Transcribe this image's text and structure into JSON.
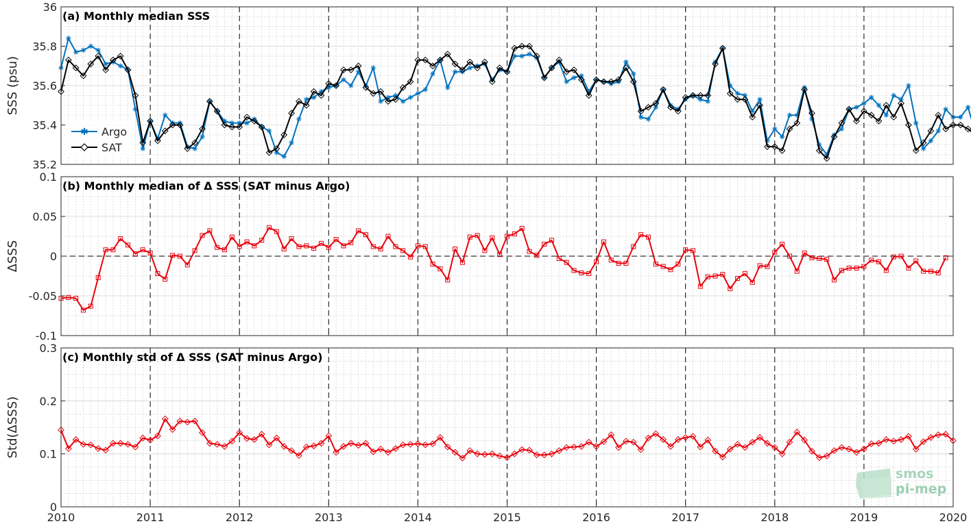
{
  "chart_data": [
    {
      "type": "line",
      "title": "(a) Monthly median SSS",
      "ylabel": "SSS (psu)",
      "xlim": [
        2010,
        2020
      ],
      "ylim": [
        35.2,
        36.0
      ],
      "xticks": [
        "2010",
        "2011",
        "2012",
        "2013",
        "2014",
        "2015",
        "2016",
        "2017",
        "2018",
        "2019",
        "2020"
      ],
      "yticks": [
        "35.2",
        "35.4",
        "35.6",
        "35.8",
        "36"
      ],
      "legend": {
        "location": "bottom-left"
      },
      "x_start": 2010.0,
      "x_step": 0.08333,
      "series": [
        {
          "name": "Argo",
          "color": "#0072BD",
          "marker": "star",
          "values": [
            35.69,
            35.84,
            35.77,
            35.78,
            35.8,
            35.78,
            35.71,
            35.72,
            35.7,
            35.68,
            35.48,
            35.28,
            35.42,
            35.33,
            35.45,
            35.41,
            35.41,
            35.29,
            35.28,
            35.34,
            35.52,
            35.47,
            35.42,
            35.41,
            35.41,
            35.41,
            35.43,
            35.39,
            35.37,
            35.26,
            35.24,
            35.31,
            35.43,
            35.53,
            35.54,
            35.57,
            35.59,
            35.6,
            35.63,
            35.6,
            35.67,
            35.6,
            35.69,
            35.52,
            35.54,
            35.55,
            35.52,
            35.54,
            35.56,
            35.58,
            35.66,
            35.73,
            35.59,
            35.67,
            35.67,
            35.69,
            35.7,
            35.71,
            35.63,
            35.68,
            35.67,
            35.75,
            35.75,
            35.76,
            35.74,
            35.64,
            35.69,
            35.72,
            35.62,
            35.64,
            35.65,
            35.57,
            35.63,
            35.62,
            35.61,
            35.62,
            35.72,
            35.66,
            35.44,
            35.43,
            35.49,
            35.58,
            35.5,
            35.48,
            35.53,
            35.55,
            35.53,
            35.52,
            35.72,
            35.79,
            35.6,
            35.56,
            35.55,
            35.47,
            35.53,
            35.32,
            35.38,
            35.34,
            35.45,
            35.45,
            35.59,
            35.43,
            35.3,
            35.25,
            35.35,
            35.38,
            35.48,
            35.49,
            35.51,
            35.54,
            35.5,
            35.45,
            35.55,
            35.53,
            35.6,
            35.41,
            35.28,
            35.32,
            35.37,
            35.48,
            35.44,
            35.44,
            35.49,
            35.36
          ]
        },
        {
          "name": "SAT",
          "color": "#000000",
          "marker": "diamond",
          "values": [
            35.57,
            35.73,
            35.69,
            35.65,
            35.71,
            35.75,
            35.68,
            35.73,
            35.75,
            35.68,
            35.55,
            35.31,
            35.42,
            35.32,
            35.37,
            35.4,
            35.4,
            35.28,
            35.31,
            35.38,
            35.52,
            35.47,
            35.4,
            35.39,
            35.39,
            35.44,
            35.42,
            35.39,
            35.26,
            35.28,
            35.35,
            35.46,
            35.52,
            35.5,
            35.57,
            35.55,
            35.61,
            35.6,
            35.68,
            35.68,
            35.7,
            35.59,
            35.56,
            35.57,
            35.52,
            35.53,
            35.59,
            35.62,
            35.73,
            35.73,
            35.7,
            35.73,
            35.76,
            35.71,
            35.68,
            35.72,
            35.69,
            35.72,
            35.62,
            35.69,
            35.67,
            35.79,
            35.8,
            35.8,
            35.75,
            35.64,
            35.69,
            35.73,
            35.67,
            35.68,
            35.63,
            35.55,
            35.63,
            35.62,
            35.62,
            35.63,
            35.69,
            35.62,
            35.47,
            35.49,
            35.51,
            35.58,
            35.49,
            35.47,
            35.54,
            35.55,
            35.55,
            35.55,
            35.71,
            35.79,
            35.56,
            35.53,
            35.53,
            35.44,
            35.5,
            35.29,
            35.29,
            35.27,
            35.38,
            35.41,
            35.58,
            35.46,
            35.27,
            35.23,
            35.34,
            35.41,
            35.48,
            35.42,
            35.47,
            35.45,
            35.42,
            35.5,
            35.44,
            35.51,
            35.4,
            35.27,
            35.31,
            35.37,
            35.45,
            35.38,
            35.4,
            35.4,
            35.38,
            35.35
          ]
        }
      ]
    },
    {
      "type": "line",
      "title": "(b) Monthly median of Δ SSS (SAT minus Argo)",
      "ylabel": "ΔSSS",
      "xlim": [
        2010,
        2020
      ],
      "ylim": [
        -0.1,
        0.1
      ],
      "xticks": [
        "2010",
        "2011",
        "2012",
        "2013",
        "2014",
        "2015",
        "2016",
        "2017",
        "2018",
        "2019",
        "2020"
      ],
      "yticks": [
        "-0.1",
        "-0.05",
        "0",
        "0.05",
        "0.1"
      ],
      "x_start": 2010.0,
      "x_step": 0.08333,
      "series": [
        {
          "color": "#E8000B",
          "marker": "square",
          "values": [
            -0.053,
            -0.052,
            -0.053,
            -0.068,
            -0.063,
            -0.027,
            0.008,
            0.008,
            0.022,
            0.014,
            0.003,
            0.008,
            0.004,
            -0.022,
            -0.029,
            0.001,
            0.0,
            -0.011,
            0.007,
            0.026,
            0.032,
            0.011,
            0.008,
            0.024,
            0.012,
            0.018,
            0.013,
            0.02,
            0.036,
            0.031,
            0.009,
            0.022,
            0.012,
            0.013,
            0.01,
            0.016,
            0.011,
            0.021,
            0.013,
            0.017,
            0.032,
            0.027,
            0.012,
            0.009,
            0.025,
            0.012,
            0.007,
            -0.001,
            0.013,
            0.012,
            -0.01,
            -0.016,
            -0.03,
            0.009,
            -0.008,
            0.024,
            0.026,
            0.007,
            0.023,
            0.002,
            0.025,
            0.028,
            0.035,
            0.006,
            0.001,
            0.015,
            0.02,
            -0.003,
            -0.008,
            -0.018,
            -0.021,
            -0.022,
            -0.007,
            0.018,
            -0.005,
            -0.009,
            -0.009,
            0.012,
            0.027,
            0.024,
            -0.01,
            -0.013,
            -0.017,
            -0.01,
            0.008,
            0.007,
            -0.038,
            -0.026,
            -0.025,
            -0.023,
            -0.041,
            -0.028,
            -0.022,
            -0.033,
            -0.012,
            -0.013,
            0.005,
            0.015,
            0.0,
            -0.019,
            0.004,
            -0.002,
            -0.003,
            -0.004,
            -0.03,
            -0.018,
            -0.015,
            -0.015,
            -0.013,
            -0.005,
            -0.007,
            -0.018,
            -0.001,
            0.0,
            -0.015,
            -0.006,
            -0.019,
            -0.019,
            -0.021,
            -0.002
          ]
        }
      ]
    },
    {
      "type": "line",
      "title": "(c) Monthly std of Δ SSS (SAT minus Argo)",
      "ylabel": "Std(ΔSSS)",
      "xlim": [
        2010,
        2020
      ],
      "ylim": [
        0,
        0.3
      ],
      "xticks": [
        "2010",
        "2011",
        "2012",
        "2013",
        "2014",
        "2015",
        "2016",
        "2017",
        "2018",
        "2019",
        "2020"
      ],
      "yticks": [
        "0",
        "0.1",
        "0.2",
        "0.3"
      ],
      "x_start": 2010.0,
      "x_step": 0.08333,
      "series": [
        {
          "color": "#E8000B",
          "marker": "diamond",
          "values": [
            0.145,
            0.11,
            0.127,
            0.118,
            0.117,
            0.11,
            0.107,
            0.12,
            0.12,
            0.118,
            0.113,
            0.13,
            0.126,
            0.134,
            0.166,
            0.146,
            0.162,
            0.16,
            0.162,
            0.14,
            0.12,
            0.118,
            0.114,
            0.124,
            0.14,
            0.129,
            0.127,
            0.137,
            0.117,
            0.13,
            0.114,
            0.106,
            0.097,
            0.113,
            0.115,
            0.12,
            0.134,
            0.103,
            0.114,
            0.12,
            0.116,
            0.12,
            0.104,
            0.109,
            0.103,
            0.11,
            0.117,
            0.118,
            0.119,
            0.117,
            0.119,
            0.131,
            0.113,
            0.103,
            0.092,
            0.106,
            0.1,
            0.099,
            0.1,
            0.096,
            0.093,
            0.1,
            0.108,
            0.107,
            0.098,
            0.098,
            0.1,
            0.106,
            0.112,
            0.113,
            0.114,
            0.122,
            0.114,
            0.123,
            0.136,
            0.112,
            0.124,
            0.122,
            0.108,
            0.13,
            0.138,
            0.127,
            0.114,
            0.127,
            0.131,
            0.133,
            0.113,
            0.126,
            0.105,
            0.094,
            0.109,
            0.118,
            0.112,
            0.122,
            0.131,
            0.12,
            0.112,
            0.1,
            0.122,
            0.141,
            0.126,
            0.105,
            0.093,
            0.096,
            0.106,
            0.112,
            0.109,
            0.103,
            0.109,
            0.119,
            0.12,
            0.127,
            0.124,
            0.127,
            0.133,
            0.109,
            0.123,
            0.131,
            0.136,
            0.137,
            0.125
          ]
        }
      ]
    }
  ],
  "legend": {
    "argo": "Argo",
    "sat": "SAT"
  },
  "logo": {
    "line1": "smos",
    "line2": "pi-mep"
  }
}
